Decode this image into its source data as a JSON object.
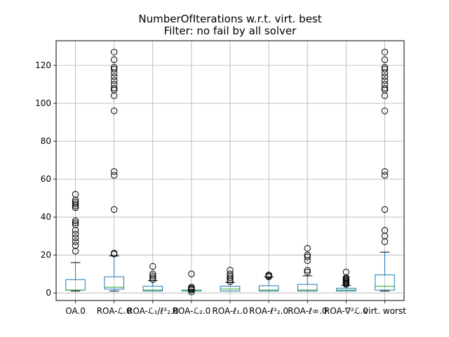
{
  "chart_data": {
    "type": "box",
    "title": "NumberOfIterations w.r.t. virt. best",
    "subtitle": "Filter: no fail by all solver",
    "xlabel": "",
    "ylabel": "",
    "ylim": [
      -4,
      133
    ],
    "yticks": [
      0,
      20,
      40,
      60,
      80,
      100,
      120
    ],
    "grid": true,
    "categories": [
      "OA.0",
      "ROA-ℒ.0",
      "ROA-ℒ₁/ℓ²₂.0",
      "ROA-ℒ₂.0",
      "ROA-ℓ₁.0",
      "ROA-ℓ²₂.0",
      "ROA-ℓ∞.0",
      "ROA-∇²ℒ.0",
      "virt. worst"
    ],
    "boxes": [
      {
        "name": "OA.0",
        "whisker_low": 1,
        "q1": 1.5,
        "median": 1.5,
        "q3": 7,
        "whisker_high": 16,
        "outliers": [
          22,
          25,
          27,
          29,
          31,
          33,
          36,
          37,
          38,
          45,
          45,
          46,
          47,
          48,
          49,
          52
        ]
      },
      {
        "name": "ROA-ℒ.0",
        "whisker_low": 1,
        "q1": 2,
        "median": 3,
        "q3": 8.5,
        "whisker_high": 19.5,
        "outliers": [
          20.5,
          21,
          44,
          62,
          64,
          96,
          104,
          107,
          108,
          110,
          112,
          114,
          116,
          118,
          119,
          123,
          127
        ]
      },
      {
        "name": "ROA-ℒ₁/ℓ²₂.0",
        "whisker_low": 1,
        "q1": 1,
        "median": 1.5,
        "q3": 3.5,
        "whisker_high": 6.5,
        "outliers": [
          7,
          8,
          9,
          10,
          14
        ]
      },
      {
        "name": "ROA-ℒ₂.0",
        "whisker_low": 1,
        "q1": 1,
        "median": 1,
        "q3": 1.5,
        "whisker_high": 1.5,
        "outliers": [
          0.5,
          1.5,
          2,
          2.5,
          3,
          10
        ]
      },
      {
        "name": "ROA-ℓ₁.0",
        "whisker_low": 1,
        "q1": 1,
        "median": 2,
        "q3": 3.5,
        "whisker_high": 5.5,
        "outliers": [
          6,
          7,
          8,
          9,
          10,
          12
        ]
      },
      {
        "name": "ROA-ℓ²₂.0",
        "whisker_low": 1,
        "q1": 1,
        "median": 1.5,
        "q3": 3.8,
        "whisker_high": 8.5,
        "outliers": [
          8.5,
          9,
          9.5
        ]
      },
      {
        "name": "ROA-ℓ∞.0",
        "whisker_low": 1,
        "q1": 1,
        "median": 1.5,
        "q3": 4.5,
        "whisker_high": 9,
        "outliers": [
          11,
          12,
          17,
          19,
          20,
          23.5
        ]
      },
      {
        "name": "ROA-∇²ℒ.0",
        "whisker_low": 1,
        "q1": 1,
        "median": 1.5,
        "q3": 2.5,
        "whisker_high": 4,
        "outliers": [
          4.5,
          5,
          5.5,
          6,
          6.5,
          7,
          7.5,
          8,
          11
        ]
      },
      {
        "name": "virt. worst",
        "whisker_low": 1,
        "q1": 1.5,
        "median": 3.5,
        "q3": 9.5,
        "whisker_high": 21.5,
        "outliers": [
          27,
          30,
          33,
          44,
          62,
          64,
          96,
          104,
          107,
          108,
          110,
          112,
          114,
          116,
          118,
          119,
          123,
          127
        ]
      }
    ],
    "colors": {
      "box": "#1f77b4",
      "median": "#2ca02c",
      "flier": "#000000",
      "grid": "#b0b0b0",
      "axes": "#000000"
    }
  }
}
